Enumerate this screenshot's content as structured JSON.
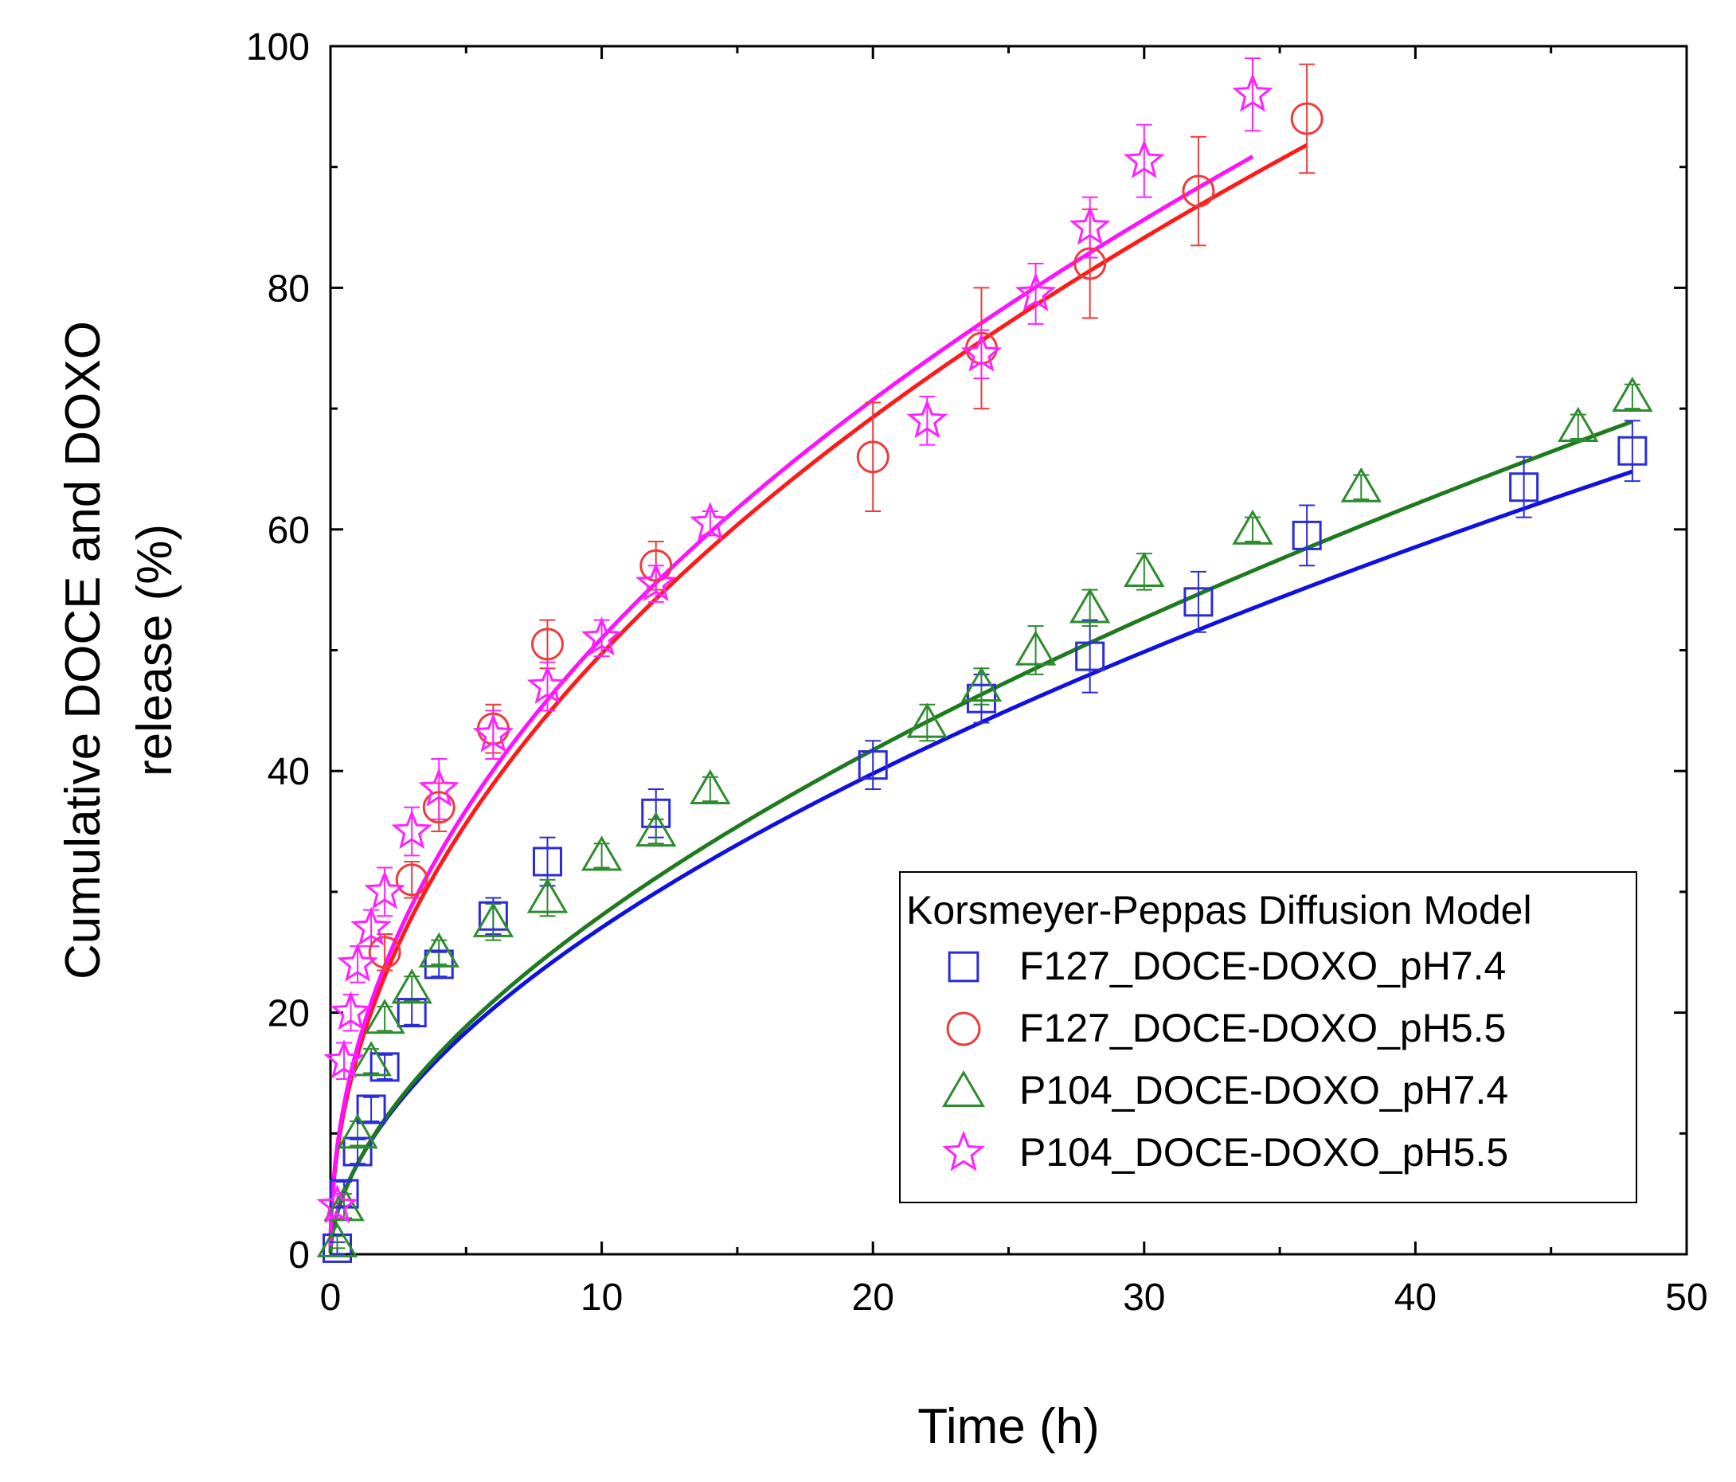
{
  "chart_data": {
    "type": "scatter",
    "xlabel": "Time (h)",
    "ylabel_lines": [
      "Cumulative DOCE and DOXO",
      "release (%)"
    ],
    "xlim": [
      0,
      50
    ],
    "ylim": [
      0,
      100
    ],
    "xticks": [
      0,
      10,
      20,
      30,
      40,
      50
    ],
    "yticks": [
      0,
      20,
      40,
      60,
      80,
      100
    ],
    "grid": false,
    "legend": {
      "title": "Korsmeyer-Peppas Diffusion Model",
      "placement": "bottom-right"
    },
    "series": [
      {
        "name": "F127_DOCE-DOXO_pH7.4",
        "marker": "square",
        "color": "#2b2bd9",
        "fit_color": "#1010e0",
        "points": [
          {
            "x": 0.25,
            "y": 0.5,
            "err": 0.5
          },
          {
            "x": 0.5,
            "y": 5,
            "err": 1
          },
          {
            "x": 1,
            "y": 8.5,
            "err": 1
          },
          {
            "x": 1.5,
            "y": 12,
            "err": 1
          },
          {
            "x": 2,
            "y": 15.5,
            "err": 1
          },
          {
            "x": 3,
            "y": 20,
            "err": 1
          },
          {
            "x": 4,
            "y": 24,
            "err": 1
          },
          {
            "x": 6,
            "y": 28,
            "err": 1.5
          },
          {
            "x": 8,
            "y": 32.5,
            "err": 2
          },
          {
            "x": 12,
            "y": 36.5,
            "err": 2
          },
          {
            "x": 20,
            "y": 40.5,
            "err": 2
          },
          {
            "x": 24,
            "y": 46,
            "err": 2
          },
          {
            "x": 28,
            "y": 49.5,
            "err": 3
          },
          {
            "x": 32,
            "y": 54,
            "err": 2.5
          },
          {
            "x": 36,
            "y": 59.5,
            "err": 2.5
          },
          {
            "x": 44,
            "y": 63.5,
            "err": 2.5
          },
          {
            "x": 48,
            "y": 66.5,
            "err": 2.5
          }
        ],
        "fit": {
          "k": 7.5,
          "n": 0.557,
          "xmax": 48
        }
      },
      {
        "name": "F127_DOCE-DOXO_pH5.5",
        "marker": "circle",
        "color": "#ee3b3b",
        "fit_color": "#ff1a1a",
        "points": [
          {
            "x": 2,
            "y": 25,
            "err": 1.5
          },
          {
            "x": 3,
            "y": 31,
            "err": 1.5
          },
          {
            "x": 4,
            "y": 37,
            "err": 2
          },
          {
            "x": 6,
            "y": 43.5,
            "err": 2
          },
          {
            "x": 8,
            "y": 50.5,
            "err": 2
          },
          {
            "x": 12,
            "y": 57,
            "err": 2
          },
          {
            "x": 20,
            "y": 66,
            "err": 4.5
          },
          {
            "x": 24,
            "y": 75,
            "err": 5
          },
          {
            "x": 28,
            "y": 82,
            "err": 4.5
          },
          {
            "x": 32,
            "y": 88,
            "err": 4.5
          },
          {
            "x": 36,
            "y": 94,
            "err": 4.5
          }
        ],
        "fit": {
          "k": 16.5,
          "n": 0.479,
          "xmax": 36
        }
      },
      {
        "name": "P104_DOCE-DOXO_pH7.4",
        "marker": "triangle",
        "color": "#2e8b2e",
        "fit_color": "#1e7a1e",
        "points": [
          {
            "x": 0.25,
            "y": 1,
            "err": 0.5
          },
          {
            "x": 0.5,
            "y": 4,
            "err": 1
          },
          {
            "x": 1,
            "y": 10,
            "err": 1
          },
          {
            "x": 1.5,
            "y": 16,
            "err": 1
          },
          {
            "x": 2,
            "y": 19.5,
            "err": 1
          },
          {
            "x": 3,
            "y": 22,
            "err": 1
          },
          {
            "x": 4,
            "y": 25,
            "err": 1
          },
          {
            "x": 6,
            "y": 27.5,
            "err": 1.5
          },
          {
            "x": 8,
            "y": 29.5,
            "err": 1.5
          },
          {
            "x": 10,
            "y": 33,
            "err": 1
          },
          {
            "x": 12,
            "y": 35,
            "err": 1
          },
          {
            "x": 14,
            "y": 38.5,
            "err": 1
          },
          {
            "x": 22,
            "y": 44,
            "err": 1.5
          },
          {
            "x": 24,
            "y": 47,
            "err": 1.5
          },
          {
            "x": 26,
            "y": 50,
            "err": 2
          },
          {
            "x": 28,
            "y": 53.5,
            "err": 1.5
          },
          {
            "x": 30,
            "y": 56.5,
            "err": 1.5
          },
          {
            "x": 34,
            "y": 60,
            "err": 1
          },
          {
            "x": 38,
            "y": 63.5,
            "err": 1
          },
          {
            "x": 46,
            "y": 68.5,
            "err": 1
          },
          {
            "x": 48,
            "y": 71,
            "err": 1
          }
        ],
        "fit": {
          "k": 7.5,
          "n": 0.573,
          "xmax": 48
        }
      },
      {
        "name": "P104_DOCE-DOXO_pH5.5",
        "marker": "star",
        "color": "#ff22ff",
        "fit_color": "#ff10ff",
        "points": [
          {
            "x": 0.25,
            "y": 4,
            "err": 1
          },
          {
            "x": 0.5,
            "y": 16,
            "err": 1.5
          },
          {
            "x": 0.75,
            "y": 20,
            "err": 1.5
          },
          {
            "x": 1,
            "y": 24,
            "err": 1.5
          },
          {
            "x": 1.5,
            "y": 27,
            "err": 1.5
          },
          {
            "x": 2,
            "y": 30,
            "err": 2
          },
          {
            "x": 3,
            "y": 35,
            "err": 2
          },
          {
            "x": 4,
            "y": 38.5,
            "err": 2.5
          },
          {
            "x": 6,
            "y": 43,
            "err": 2
          },
          {
            "x": 8,
            "y": 47,
            "err": 2
          },
          {
            "x": 10,
            "y": 51,
            "err": 1.5
          },
          {
            "x": 12,
            "y": 55.5,
            "err": 1.5
          },
          {
            "x": 14,
            "y": 60.5,
            "err": 1
          },
          {
            "x": 22,
            "y": 69,
            "err": 2
          },
          {
            "x": 24,
            "y": 74.5,
            "err": 2
          },
          {
            "x": 26,
            "y": 79.5,
            "err": 2.5
          },
          {
            "x": 28,
            "y": 85,
            "err": 2.5
          },
          {
            "x": 30,
            "y": 90.5,
            "err": 3
          },
          {
            "x": 34,
            "y": 96,
            "err": 3
          }
        ],
        "fit": {
          "k": 17.2,
          "n": 0.472,
          "xmax": 34
        }
      }
    ]
  }
}
